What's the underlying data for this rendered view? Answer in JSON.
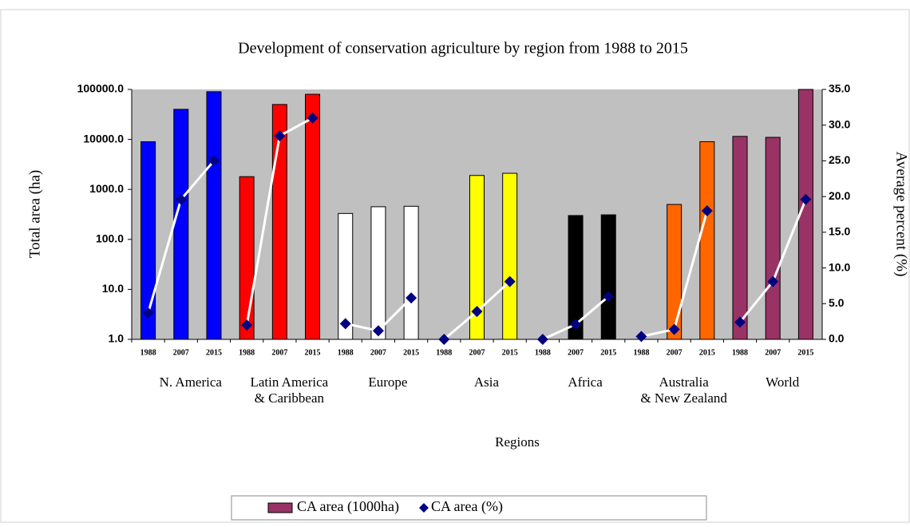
{
  "chart_data": {
    "type": "bar_line",
    "title": "Development of conservation agriculture by region from 1988 to 2015",
    "y_label": "Total area (ha)",
    "y2_label": "Average percent (%)",
    "x_label": "Regions",
    "categories": [
      "1988",
      "2007",
      "2015",
      "1988",
      "2007",
      "2015",
      "1988",
      "2007",
      "2015",
      "1988",
      "2007",
      "2015",
      "1988",
      "2007",
      "2015",
      "1988",
      "2007",
      "2015",
      "1988",
      "2007",
      "2015"
    ],
    "groups": [
      {
        "name": [
          "N. America"
        ],
        "color": "#0000ff"
      },
      {
        "name": [
          "Latin America",
          "& Caribbean"
        ],
        "color": "#ff0000"
      },
      {
        "name": [
          "Europe"
        ],
        "color": "#ffffff"
      },
      {
        "name": [
          "Asia"
        ],
        "color": "#ffff00"
      },
      {
        "name": [
          "Africa"
        ],
        "color": "#000000"
      },
      {
        "name": [
          "Australia",
          "& New Zealand"
        ],
        "color": "#ff6600"
      },
      {
        "name": [
          "World"
        ],
        "color": "#993366"
      }
    ],
    "series": [
      {
        "name": "CA area (1000ha)",
        "color": "#993366",
        "values": [
          9000,
          40000,
          90000,
          1800,
          50000,
          80000,
          330,
          450,
          460,
          null,
          1900,
          2100,
          null,
          300,
          310,
          null,
          500,
          9000,
          11500,
          11000,
          100000
        ]
      },
      {
        "name": "CA area (%)",
        "color": "#000080",
        "line_color": "#ffffff",
        "axis": "y2",
        "values": [
          3.7,
          19.6,
          25,
          2.0,
          28.5,
          31,
          2.2,
          1.2,
          5.8,
          0,
          3.9,
          8.1,
          0,
          2.1,
          6.0,
          0.4,
          1.4,
          18,
          2.4,
          8.1,
          19.6
        ]
      }
    ],
    "log_y": true,
    "ylim": [
      1,
      100000
    ],
    "yticks": [
      {
        "value": 1,
        "label": "1.0"
      },
      {
        "value": 10,
        "label": "10.0"
      },
      {
        "value": 100,
        "label": "100.0"
      },
      {
        "value": 1000,
        "label": "1000.0"
      },
      {
        "value": 10000,
        "label": "10000.0"
      },
      {
        "value": 100000,
        "label": "100000.0"
      }
    ],
    "y2lim": [
      0,
      35
    ],
    "y2ticks": [
      {
        "value": 0,
        "label": "0.0"
      },
      {
        "value": 5,
        "label": "5.0"
      },
      {
        "value": 10,
        "label": "10.0"
      },
      {
        "value": 15,
        "label": "15.0"
      },
      {
        "value": 20,
        "label": "20.0"
      },
      {
        "value": 25,
        "label": "25.0"
      },
      {
        "value": 30,
        "label": "30.0"
      },
      {
        "value": 35,
        "label": "35.0"
      }
    ],
    "plot_background": "#c0c0c0"
  }
}
